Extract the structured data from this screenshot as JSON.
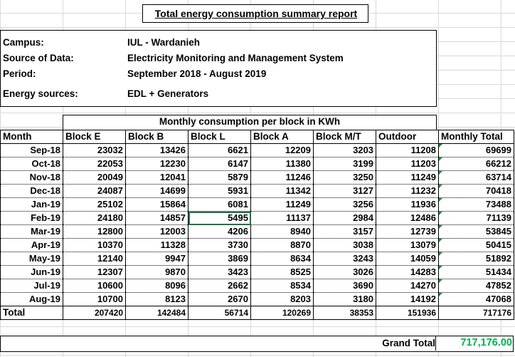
{
  "report": {
    "title": "Total energy consumption summary report",
    "campus_label": "Campus:",
    "campus_value": "IUL - Wardanieh",
    "source_label": "Source of Data:",
    "source_value": "Electricity Monitoring and Management System",
    "period_label": "Period:",
    "period_value": "September 2018 - August 2019",
    "energy_label": "Energy sources:",
    "energy_value": "EDL + Generators"
  },
  "table": {
    "group_header": "Monthly consumption per block in KWh",
    "columns": [
      "Month",
      "Block E",
      "Block B",
      "Block L",
      "Block A",
      "Block M/T",
      "Outdoor",
      "Monthly Total"
    ],
    "rows": [
      {
        "month": "Sep-18",
        "e": "23032",
        "b": "13426",
        "l": "6621",
        "a": "12209",
        "mt": "3203",
        "outdoor": "11208",
        "total": "69699"
      },
      {
        "month": "Oct-18",
        "e": "22053",
        "b": "12230",
        "l": "6147",
        "a": "11380",
        "mt": "3199",
        "outdoor": "11203",
        "total": "66212"
      },
      {
        "month": "Nov-18",
        "e": "20049",
        "b": "12041",
        "l": "5879",
        "a": "11246",
        "mt": "3250",
        "outdoor": "11249",
        "total": "63714"
      },
      {
        "month": "Dec-18",
        "e": "24087",
        "b": "14699",
        "l": "5931",
        "a": "11342",
        "mt": "3127",
        "outdoor": "11232",
        "total": "70418"
      },
      {
        "month": "Jan-19",
        "e": "25102",
        "b": "15864",
        "l": "6081",
        "a": "11249",
        "mt": "3256",
        "outdoor": "11936",
        "total": "73488"
      },
      {
        "month": "Feb-19",
        "e": "24180",
        "b": "14857",
        "l": "5495",
        "a": "11137",
        "mt": "2984",
        "outdoor": "12486",
        "total": "71139"
      },
      {
        "month": "Mar-19",
        "e": "12800",
        "b": "12003",
        "l": "4206",
        "a": "8940",
        "mt": "3157",
        "outdoor": "12739",
        "total": "53845"
      },
      {
        "month": "Apr-19",
        "e": "10370",
        "b": "11328",
        "l": "3730",
        "a": "8870",
        "mt": "3038",
        "outdoor": "13079",
        "total": "50415"
      },
      {
        "month": "May-19",
        "e": "12140",
        "b": "9947",
        "l": "3869",
        "a": "8634",
        "mt": "3243",
        "outdoor": "14059",
        "total": "51892"
      },
      {
        "month": "Jun-19",
        "e": "12307",
        "b": "9870",
        "l": "3423",
        "a": "8525",
        "mt": "3026",
        "outdoor": "14283",
        "total": "51434"
      },
      {
        "month": "Jul-19",
        "e": "10600",
        "b": "8096",
        "l": "2662",
        "a": "8534",
        "mt": "3690",
        "outdoor": "14270",
        "total": "47852"
      },
      {
        "month": "Aug-19",
        "e": "10700",
        "b": "8123",
        "l": "2670",
        "a": "8203",
        "mt": "3180",
        "outdoor": "14192",
        "total": "47068"
      }
    ],
    "totals": {
      "label": "Total",
      "e": "207420",
      "b": "142484",
      "l": "56714",
      "a": "120269",
      "mt": "38353",
      "outdoor": "151936",
      "total": "717176"
    },
    "grand_total_label": "Grand Total",
    "grand_total_value": "717,176.00"
  },
  "colors": {
    "grand_total": "#00b050",
    "selection": "#217346",
    "gridlines": "#d9d9d9"
  }
}
